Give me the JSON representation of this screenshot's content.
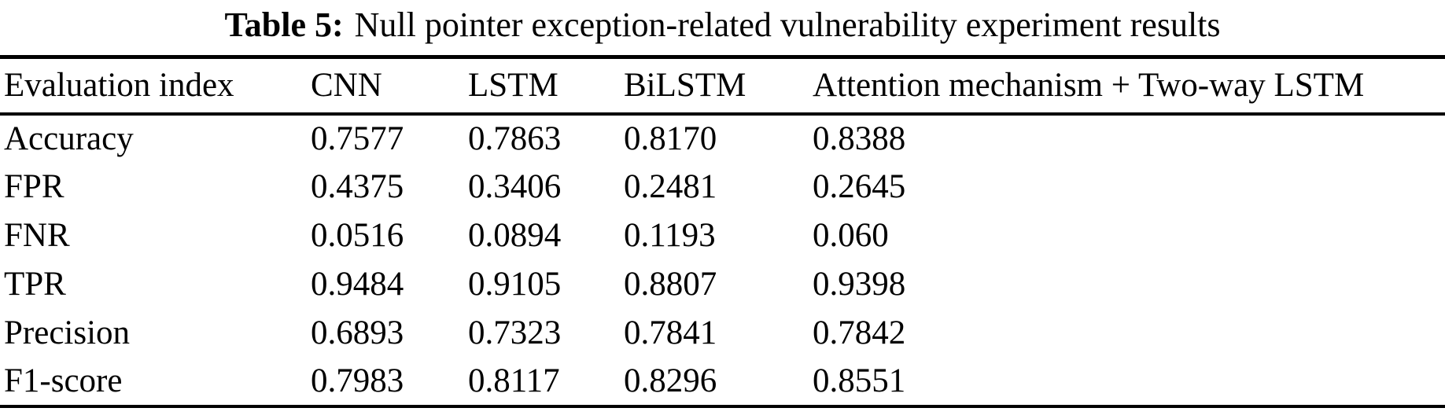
{
  "caption": {
    "label": "Table 5:",
    "title": "Null pointer exception-related vulnerability experiment results"
  },
  "table": {
    "headers": [
      "Evaluation index",
      "CNN",
      "LSTM",
      "BiLSTM",
      "Attention mechanism + Two-way LSTM"
    ],
    "rows": [
      {
        "index": "Accuracy",
        "values": [
          "0.7577",
          "0.7863",
          "0.8170",
          "0.8388"
        ]
      },
      {
        "index": "FPR",
        "values": [
          "0.4375",
          "0.3406",
          "0.2481",
          "0.2645"
        ]
      },
      {
        "index": "FNR",
        "values": [
          "0.0516",
          "0.0894",
          "0.1193",
          "0.060"
        ]
      },
      {
        "index": "TPR",
        "values": [
          "0.9484",
          "0.9105",
          "0.8807",
          "0.9398"
        ]
      },
      {
        "index": "Precision",
        "values": [
          "0.6893",
          "0.7323",
          "0.7841",
          "0.7842"
        ]
      },
      {
        "index": "F1-score",
        "values": [
          "0.7983",
          "0.8117",
          "0.8296",
          "0.8551"
        ]
      }
    ]
  },
  "chart_data": {
    "type": "table",
    "title": "Table 5: Null pointer exception-related vulnerability experiment results",
    "columns": [
      "Evaluation index",
      "CNN",
      "LSTM",
      "BiLSTM",
      "Attention mechanism + Two-way LSTM"
    ],
    "rows": [
      [
        "Accuracy",
        "0.7577",
        "0.7863",
        "0.8170",
        "0.8388"
      ],
      [
        "FPR",
        "0.4375",
        "0.3406",
        "0.2481",
        "0.2645"
      ],
      [
        "FNR",
        "0.0516",
        "0.0894",
        "0.1193",
        "0.060"
      ],
      [
        "TPR",
        "0.9484",
        "0.9105",
        "0.8807",
        "0.9398"
      ],
      [
        "Precision",
        "0.6893",
        "0.7323",
        "0.7841",
        "0.7842"
      ],
      [
        "F1-score",
        "0.7983",
        "0.8117",
        "0.8296",
        "0.8551"
      ]
    ]
  },
  "colors": {
    "text": "#000000",
    "background": "#ffffff",
    "rule": "#000000"
  }
}
